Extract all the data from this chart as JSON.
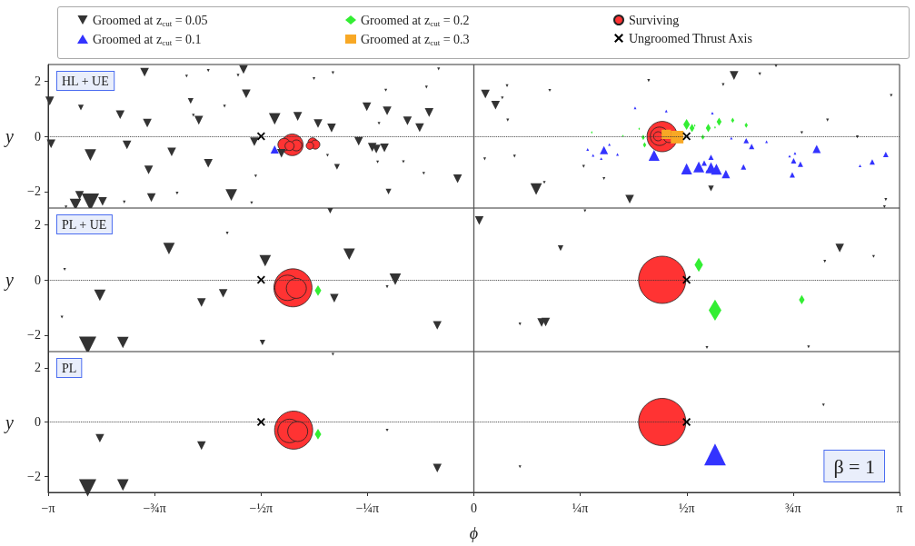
{
  "chart_data": [
    {
      "type": "bubble",
      "xlim": [
        -3.14159,
        3.14159
      ],
      "ylim": [
        -2.6,
        2.6
      ],
      "yticks": [
        -2,
        0,
        2
      ],
      "ylabel": "y",
      "tick_labels": "y",
      "grid": false,
      "legend": "top",
      "annotations": [
        "HL + UE"
      ],
      "ref_lines": [
        {
          "axis": "x",
          "value": 0,
          "color": "#555555",
          "line_style": "solid"
        },
        {
          "axis": "y",
          "value": 0,
          "color": "#333333",
          "line_style": "dotted"
        }
      ],
      "series": [
        {
          "name": "Groomed at z$_{cut}$ = 0.05",
          "color": "#333333",
          "marker": "triangle-down",
          "x": [
            -2.43,
            -2.12,
            -1.96,
            -1.7,
            -1.74,
            -3.13,
            -2.9,
            -2.61,
            -2.41,
            -2.09,
            -2.03,
            -2.07,
            -1.84,
            -1.68,
            -1.47,
            -1.3,
            -1.15,
            -1.05,
            -1.18,
            -1.04,
            -0.79,
            -0.64,
            -0.49,
            -0.33,
            -0.4,
            -0.35,
            -0.26,
            -0.65,
            -0.7,
            -3.12,
            -2.56,
            -2.83,
            -2.23,
            -2.4,
            -1.96,
            -1.62,
            -1.61,
            -1.79,
            -2.38,
            -2.91,
            -2.83,
            -2.94,
            -3.01,
            -2.74,
            -2.58,
            -2.19,
            -1.42,
            -1.08,
            -1.01,
            -0.85,
            -0.75,
            -0.72,
            -0.66,
            -0.71,
            -0.52,
            -0.63,
            -0.37,
            -0.12,
            -1.64,
            0.085,
            0.16,
            0.245,
            0.21,
            0.25,
            0.56,
            1.29,
            1.92,
            2.11,
            1.84,
            2.23,
            2.61,
            3.08,
            0.3,
            0.08,
            0.81,
            0.96,
            0.46,
            0.52,
            1.15,
            1.75,
            3.04,
            3.03,
            2.42,
            2.83
          ],
          "values": [
            2.32,
            2.18,
            2.38,
            2.42,
            2.21,
            1.28,
            1.04,
            0.78,
            0.48,
            1.28,
            0.58,
            0.76,
            1.09,
            1.54,
            0.63,
            0.72,
            0.46,
            0.3,
            2.09,
            2.3,
            1.07,
            0.92,
            0.56,
            0.86,
            0.31,
            1.78,
            2.44,
            1.67,
            0.47,
            -0.27,
            -0.31,
            -0.68,
            -0.57,
            -1.22,
            -0.98,
            -0.2,
            -1.44,
            -2.13,
            -2.22,
            -2.14,
            -2.39,
            -2.47,
            -2.56,
            -2.36,
            -2.38,
            -2.06,
            -0.62,
            -0.69,
            -1.11,
            -0.18,
            -0.4,
            -0.46,
            -0.42,
            -0.93,
            -0.92,
            -2.0,
            -1.34,
            -1.54,
            -2.41,
            1.53,
            1.13,
            1.83,
            1.39,
            0.59,
            1.66,
            2.02,
            2.2,
            2.26,
            1.87,
            2.55,
            0.59,
            1.48,
            -0.72,
            -0.82,
            -1.09,
            -1.53,
            -1.91,
            -1.67,
            -2.28,
            -1.89,
            -2.29,
            -2.55,
            0.13,
            -0.02
          ],
          "sizes": [
            0.047,
            0.005,
            0.005,
            0.047,
            0.005,
            0.047,
            0.02,
            0.047,
            0.047,
            0.02,
            0.047,
            0.005,
            0.005,
            0.047,
            0.083,
            0.047,
            0.047,
            0.047,
            0.005,
            0.005,
            0.047,
            0.047,
            0.047,
            0.047,
            0.047,
            0.005,
            0.005,
            0.005,
            0.005,
            0.047,
            0.047,
            0.083,
            0.047,
            0.047,
            0.047,
            0.047,
            0.005,
            0.083,
            0.047,
            0.047,
            0.19,
            0.083,
            0.005,
            0.047,
            0.005,
            0.005,
            0.047,
            0.005,
            0.02,
            0.047,
            0.047,
            0.047,
            0.047,
            0.005,
            0.005,
            0.02,
            0.005,
            0.047,
            0.005,
            0.047,
            0.047,
            0.005,
            0.005,
            0.005,
            0.005,
            0.005,
            0.047,
            0.005,
            0.005,
            0.005,
            0.005,
            0.005,
            0.005,
            0.005,
            0.005,
            0.005,
            0.083,
            0.005,
            0.047,
            0.02,
            0.005,
            0.005,
            0.005,
            0.005
          ]
        },
        {
          "name": "Groomed at z$_{cut}$ = 0.1",
          "color": "#3333ff",
          "marker": "triangle",
          "x": [
            -1.47,
            0.96,
            1.0,
            0.88,
            0.94,
            1.06,
            0.84,
            1.33,
            1.57,
            1.66,
            1.7,
            1.75,
            1.79,
            1.75,
            1.72,
            1.86,
            1.99,
            2.01,
            2.05,
            2.16,
            2.53,
            2.33,
            2.37,
            2.36,
            2.41,
            2.35,
            2.94,
            3.04,
            2.85,
            1.19,
            1.42,
            1.76,
            1.9
          ],
          "values": [
            -0.48,
            -0.5,
            -0.3,
            -0.69,
            -0.81,
            -0.66,
            -0.48,
            -0.69,
            -1.18,
            -1.11,
            -0.97,
            -1.14,
            -1.19,
            -0.76,
            -1.27,
            -1.37,
            -1.11,
            -0.16,
            -0.37,
            -0.2,
            -0.46,
            -0.72,
            -0.62,
            -0.89,
            -1.01,
            -1.4,
            -0.93,
            -0.66,
            -1.07,
            1.03,
            0.91,
            0.84,
            -0.07
          ],
          "sizes": [
            0.047,
            0.047,
            0.005,
            0.005,
            0.005,
            0.005,
            0.005,
            0.083,
            0.083,
            0.083,
            0.02,
            0.083,
            0.083,
            0.02,
            0.005,
            0.047,
            0.02,
            0.02,
            0.02,
            0.005,
            0.047,
            0.005,
            0.005,
            0.02,
            0.02,
            0.02,
            0.02,
            0.02,
            0.005,
            0.005,
            0.005,
            0.005,
            0.005
          ]
        },
        {
          "name": "Groomed at z$_{cut}$ = 0.2",
          "color": "#33ee33",
          "marker": "diamond",
          "x": [
            1.57,
            1.61,
            1.73,
            1.81,
            1.91,
            2.01,
            1.69,
            1.25,
            1.26,
            1.22,
            1.1,
            0.87,
            1.78,
            1.63
          ],
          "values": [
            0.43,
            0.3,
            0.3,
            0.53,
            0.58,
            0.4,
            -0.03,
            -0.04,
            -0.31,
            0.27,
            0.01,
            0.14,
            0.32,
            0.39
          ],
          "sizes": [
            0.05,
            0.028,
            0.028,
            0.028,
            0.012,
            0.012,
            0.012,
            0.012,
            0.012,
            0.003,
            0.003,
            0.003,
            0.003,
            0.003
          ]
        },
        {
          "name": "Groomed at z$_{cut}$ = 0.3",
          "color": "#f8a825",
          "marker": "square",
          "x": [
            1.42,
            1.5
          ],
          "values": [
            0.07,
            -0.03
          ],
          "sizes": [
            0.12,
            0.22
          ]
        },
        {
          "name": "Surviving",
          "color": "#ff3333",
          "marker": "circle",
          "x": [
            1.39,
            1.37,
            1.36,
            1.44,
            -1.34,
            -1.4,
            -1.31,
            -1.36,
            -1.19,
            -1.17,
            -1.21
          ],
          "values": [
            -0.01,
            0.0,
            0.0,
            -0.03,
            -0.31,
            -0.3,
            -0.33,
            -0.35,
            -0.22,
            -0.3,
            -0.34
          ],
          "sizes": [
            1,
            0.37,
            0.09,
            0.13,
            0.51,
            0.17,
            0.13,
            0.09,
            0.09,
            0.09,
            0.059
          ]
        },
        {
          "name": "Ungroomed Thrust Axis",
          "color": "#000000",
          "marker": "cross",
          "type": "scatter",
          "x": [
            -1.57,
            1.57
          ],
          "values": [
            0,
            0
          ]
        }
      ]
    },
    {
      "type": "bubble",
      "xlim": [
        -3.14159,
        3.14159
      ],
      "ylim": [
        -2.6,
        2.6
      ],
      "yticks": [
        -2,
        0,
        2
      ],
      "ylabel": "y",
      "tick_labels": "y",
      "grid": false,
      "annotations": [
        "PL + UE"
      ],
      "ref_lines": [
        {
          "axis": "x",
          "value": 0,
          "color": "#555555",
          "line_style": "solid"
        },
        {
          "axis": "y",
          "value": 0,
          "color": "#333333",
          "line_style": "dotted"
        }
      ],
      "series": [
        {
          "color": "#333333",
          "marker": "triangle-down",
          "x": [
            -2.85,
            -2.59,
            -2.76,
            -3.02,
            -3.04,
            -2.25,
            -2.01,
            -1.85,
            -1.82,
            -1.54,
            -1.56,
            -1.06,
            -1.03,
            -0.92,
            -0.64,
            -0.58,
            -0.27,
            0.04,
            0.82,
            0.64,
            0.34,
            0.5,
            0.53,
            1.72,
            2.47,
            2.59,
            2.7,
            2.95
          ],
          "values": [
            -2.37,
            -2.27,
            -0.56,
            0.38,
            -1.35,
            1.13,
            -0.82,
            -0.49,
            1.69,
            0.69,
            -2.27,
            2.5,
            -0.67,
            0.93,
            -0.25,
            0.02,
            -1.65,
            2.15,
            2.5,
            1.15,
            -1.6,
            -1.55,
            -1.53,
            -2.45,
            -2.43,
            0.67,
            1.15,
            0.85
          ],
          "sizes": [
            0.077,
            0.034,
            0.034,
            0.002,
            0.002,
            0.034,
            0.019,
            0.019,
            0.002,
            0.034,
            0.008,
            0.008,
            0.019,
            0.034,
            0.002,
            0.034,
            0.019,
            0.019,
            0.002,
            0.008,
            0.002,
            0.019,
            0.019,
            0.002,
            0.002,
            0.002,
            0.019,
            0.002
          ]
        },
        {
          "color": "#33ee33",
          "marker": "diamond",
          "x": [
            -1.15,
            1.66,
            1.78,
            2.42
          ],
          "values": [
            -0.39,
            0.54,
            -1.1,
            -0.72
          ],
          "sizes": [
            0.02,
            0.034,
            0.076,
            0.015
          ]
        },
        {
          "color": "#ff3333",
          "marker": "circle",
          "x": [
            -1.335,
            -1.375,
            -1.31,
            1.39
          ],
          "values": [
            -0.29,
            -0.29,
            -0.31,
            0
          ],
          "sizes": [
            0.65,
            0.29,
            0.18,
            1
          ]
        },
        {
          "color": "#000000",
          "marker": "cross",
          "type": "scatter",
          "x": [
            -1.57,
            1.57
          ],
          "values": [
            0,
            0
          ]
        }
      ]
    },
    {
      "type": "bubble",
      "xlim": [
        -3.14159,
        3.14159
      ],
      "ylim": [
        -2.6,
        2.6
      ],
      "yticks": [
        -2,
        0,
        2
      ],
      "ylabel": "y",
      "xlabel": "ϕ",
      "grid": false,
      "xticks": [
        {
          "value": -3.14159,
          "label": "−π"
        },
        {
          "value": -2.35619,
          "label": "−¾π"
        },
        {
          "value": -1.5708,
          "label": "−½π"
        },
        {
          "value": -0.7854,
          "label": "−¼π"
        },
        {
          "value": 0,
          "label": "0"
        },
        {
          "value": 0.7854,
          "label": "¼π"
        },
        {
          "value": 1.5708,
          "label": "½π"
        },
        {
          "value": 2.35619,
          "label": "¾π"
        },
        {
          "value": 3.14159,
          "label": "π"
        }
      ],
      "annotations": [
        "PL",
        "β = 1"
      ],
      "ref_lines": [
        {
          "axis": "x",
          "value": 0,
          "color": "#555555",
          "line_style": "solid"
        },
        {
          "axis": "y",
          "value": 0,
          "color": "#333333",
          "line_style": "dotted"
        }
      ],
      "series": [
        {
          "color": "#333333",
          "marker": "triangle-down",
          "x": [
            -2.85,
            -2.76,
            -2.59,
            -2.01,
            -1.04,
            -0.64,
            -0.27,
            0.34,
            2.58
          ],
          "values": [
            -2.43,
            -0.6,
            -2.33,
            -0.87,
            2.5,
            -0.3,
            -1.7,
            -1.65,
            0.63
          ],
          "sizes": [
            0.077,
            0.019,
            0.034,
            0.019,
            0.002,
            0.002,
            0.019,
            0.002,
            0.002
          ]
        },
        {
          "color": "#33ee33",
          "marker": "diamond",
          "x": [
            -1.15
          ],
          "values": [
            -0.45
          ],
          "sizes": [
            0.02
          ]
        },
        {
          "color": "#3333ff",
          "marker": "triangle",
          "x": [
            1.78
          ],
          "values": [
            -1.2
          ],
          "sizes": [
            0.134
          ]
        },
        {
          "color": "#ff3333",
          "marker": "circle",
          "x": [
            -1.33,
            -1.36,
            -1.3,
            1.39
          ],
          "values": [
            -0.3,
            -0.33,
            -0.35,
            0
          ],
          "sizes": [
            0.65,
            0.25,
            0.18,
            1
          ]
        },
        {
          "color": "#000000",
          "marker": "cross",
          "type": "scatter",
          "x": [
            -1.57,
            1.57
          ],
          "values": [
            0,
            0
          ]
        }
      ]
    }
  ]
}
